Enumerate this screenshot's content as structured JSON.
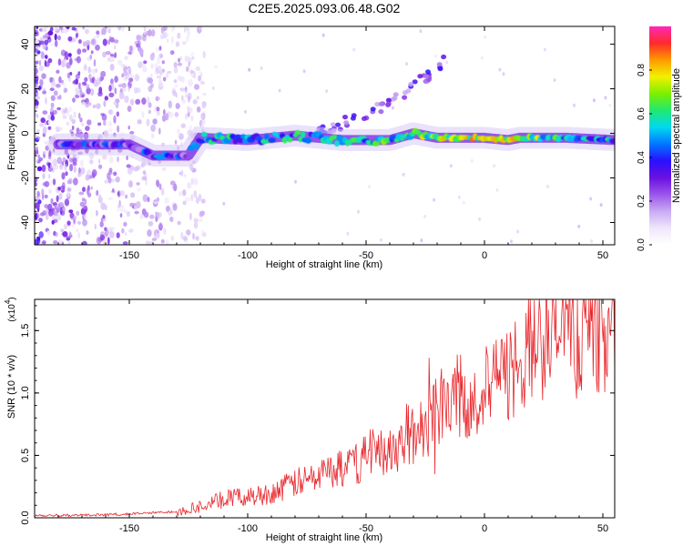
{
  "title": "C2E5.2025.093.06.48.G02",
  "colors": {
    "snr_line": "#e8262b",
    "colormap": [
      "#ffffff",
      "#efe6fb",
      "#c9aaf3",
      "#9a55ea",
      "#6a10e0",
      "#2a10ff",
      "#0077ff",
      "#00d9f0",
      "#22e870",
      "#7cf000",
      "#f2f000",
      "#ff9a00",
      "#ff2a2a",
      "#ff28b8"
    ]
  },
  "chart_data": [
    {
      "type": "heatmap",
      "title": "C2E5.2025.093.06.48.G02",
      "xlabel": "Height of straight line (km)",
      "ylabel": "Frequency (Hz)",
      "xlim": [
        -190,
        55
      ],
      "ylim": [
        -50,
        48
      ],
      "xticks": [
        "-150",
        "-100",
        "-50",
        "0",
        "50"
      ],
      "yticks": [
        "-40",
        "-20",
        "0",
        "20",
        "40"
      ],
      "colorbar": {
        "label": "Normalized spectral amplitude",
        "range": [
          0,
          1
        ],
        "ticks": [
          "0.0",
          "0.2",
          "0.4",
          "0.6",
          "0.8"
        ]
      },
      "main_trace": [
        {
          "x": -180,
          "y": -5,
          "amp": 0.3
        },
        {
          "x": -150,
          "y": -5,
          "amp": 0.3
        },
        {
          "x": -140,
          "y": -10,
          "amp": 0.35
        },
        {
          "x": -125,
          "y": -10,
          "amp": 0.3
        },
        {
          "x": -120,
          "y": -2,
          "amp": 0.45
        },
        {
          "x": -100,
          "y": -3,
          "amp": 0.5
        },
        {
          "x": -80,
          "y": -1,
          "amp": 0.5
        },
        {
          "x": -60,
          "y": -3,
          "amp": 0.5
        },
        {
          "x": -40,
          "y": -3,
          "amp": 0.55
        },
        {
          "x": -30,
          "y": 0,
          "amp": 0.6
        },
        {
          "x": -20,
          "y": -2,
          "amp": 0.65
        },
        {
          "x": 0,
          "y": -2,
          "amp": 0.75
        },
        {
          "x": 10,
          "y": -3,
          "amp": 0.75
        },
        {
          "x": 15,
          "y": -2,
          "amp": 0.7
        },
        {
          "x": 35,
          "y": -2,
          "amp": 0.55
        },
        {
          "x": 55,
          "y": -3,
          "amp": 0.45
        }
      ],
      "branch_trace": [
        {
          "x": -70,
          "y": 1
        },
        {
          "x": -50,
          "y": 8
        },
        {
          "x": -35,
          "y": 17
        },
        {
          "x": -25,
          "y": 25
        },
        {
          "x": -17,
          "y": 33
        }
      ]
    },
    {
      "type": "line",
      "xlabel": "Height of straight line (km)",
      "ylabel": "SNR (10 * v/v)",
      "y_multiplier": "(x10",
      "y_multiplier_exp": "4",
      "xlim": [
        -190,
        55
      ],
      "ylim": [
        0,
        1.75
      ],
      "xticks": [
        "-150",
        "-100",
        "-50",
        "0",
        "50"
      ],
      "yticks": [
        "0.0",
        "0.5",
        "1.0",
        "1.5"
      ],
      "series": [
        {
          "x": [
            -190,
            -180,
            -170,
            -160,
            -150,
            -140,
            -130,
            -125,
            -120,
            -115,
            -110,
            -105,
            -100,
            -95,
            -90,
            -85,
            -80,
            -75,
            -70,
            -65,
            -60,
            -55,
            -50,
            -45,
            -40,
            -35,
            -30,
            -25,
            -20,
            -15,
            -10,
            -5,
            0,
            5,
            10,
            15,
            20,
            25,
            30,
            35,
            40,
            45,
            50,
            55
          ],
          "y": [
            0.02,
            0.02,
            0.02,
            0.025,
            0.03,
            0.04,
            0.05,
            0.07,
            0.09,
            0.12,
            0.15,
            0.16,
            0.17,
            0.18,
            0.2,
            0.24,
            0.28,
            0.3,
            0.34,
            0.38,
            0.4,
            0.42,
            0.5,
            0.55,
            0.55,
            0.6,
            0.65,
            0.75,
            0.9,
            1.0,
            0.95,
            1.0,
            1.0,
            1.05,
            1.15,
            1.28,
            1.35,
            1.45,
            1.5,
            1.55,
            1.55,
            1.57,
            1.57,
            1.58
          ]
        }
      ]
    }
  ]
}
